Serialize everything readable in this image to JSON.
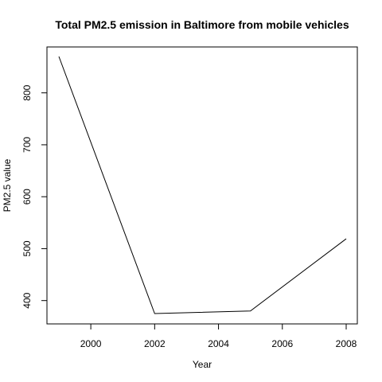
{
  "chart_data": {
    "type": "line",
    "title": "Total PM2.5 emission in Baltimore from mobile vehicles",
    "xlabel": "Year",
    "ylabel": "PM2.5 value",
    "x": [
      1999,
      2002,
      2005,
      2008
    ],
    "series": [
      {
        "values": [
          870,
          375,
          380,
          519
        ],
        "color": "#000000"
      }
    ],
    "xlim": [
      1999,
      2008
    ],
    "ylim": [
      375,
      870
    ],
    "xticks": [
      2000,
      2002,
      2004,
      2006,
      2008
    ],
    "yticks": [
      400,
      500,
      600,
      700,
      800
    ],
    "grid": false,
    "legend": "none"
  }
}
